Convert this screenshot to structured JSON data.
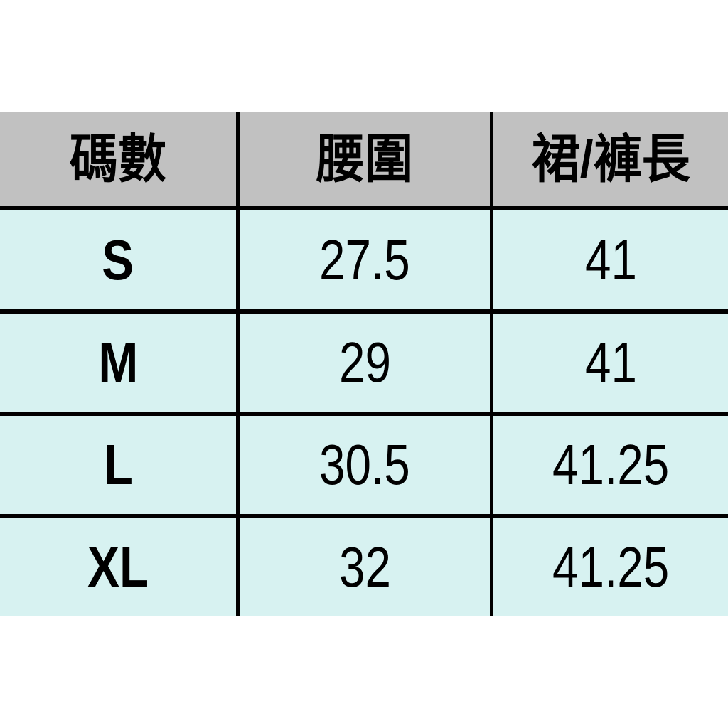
{
  "page": {
    "background": "#ffffff"
  },
  "colors": {
    "header_bg": "#c1c1c1",
    "row_bg": "#d7f2f1",
    "grid_border": "#000000",
    "text": "#000000"
  },
  "table": {
    "headers": {
      "size": "碼數",
      "waist": "腰圍",
      "length": "裙/褲長"
    },
    "rows": [
      {
        "size": "S",
        "waist": "27.5",
        "length": "41"
      },
      {
        "size": "M",
        "waist": "29",
        "length": "41"
      },
      {
        "size": "L",
        "waist": "30.5",
        "length": "41.25"
      },
      {
        "size": "XL",
        "waist": "32",
        "length": "41.25"
      }
    ]
  },
  "chart_data": {
    "type": "table",
    "columns": [
      "碼數",
      "腰圍",
      "裙/褲長"
    ],
    "rows": [
      [
        "S",
        27.5,
        41
      ],
      [
        "M",
        29,
        41
      ],
      [
        "L",
        30.5,
        41.25
      ],
      [
        "XL",
        32,
        41.25
      ]
    ],
    "layout_hints": {
      "header_background": "#c1c1c1",
      "body_background": "#d7f2f1",
      "gridlines": "black, no outer border (table cropped at image edges)"
    }
  }
}
